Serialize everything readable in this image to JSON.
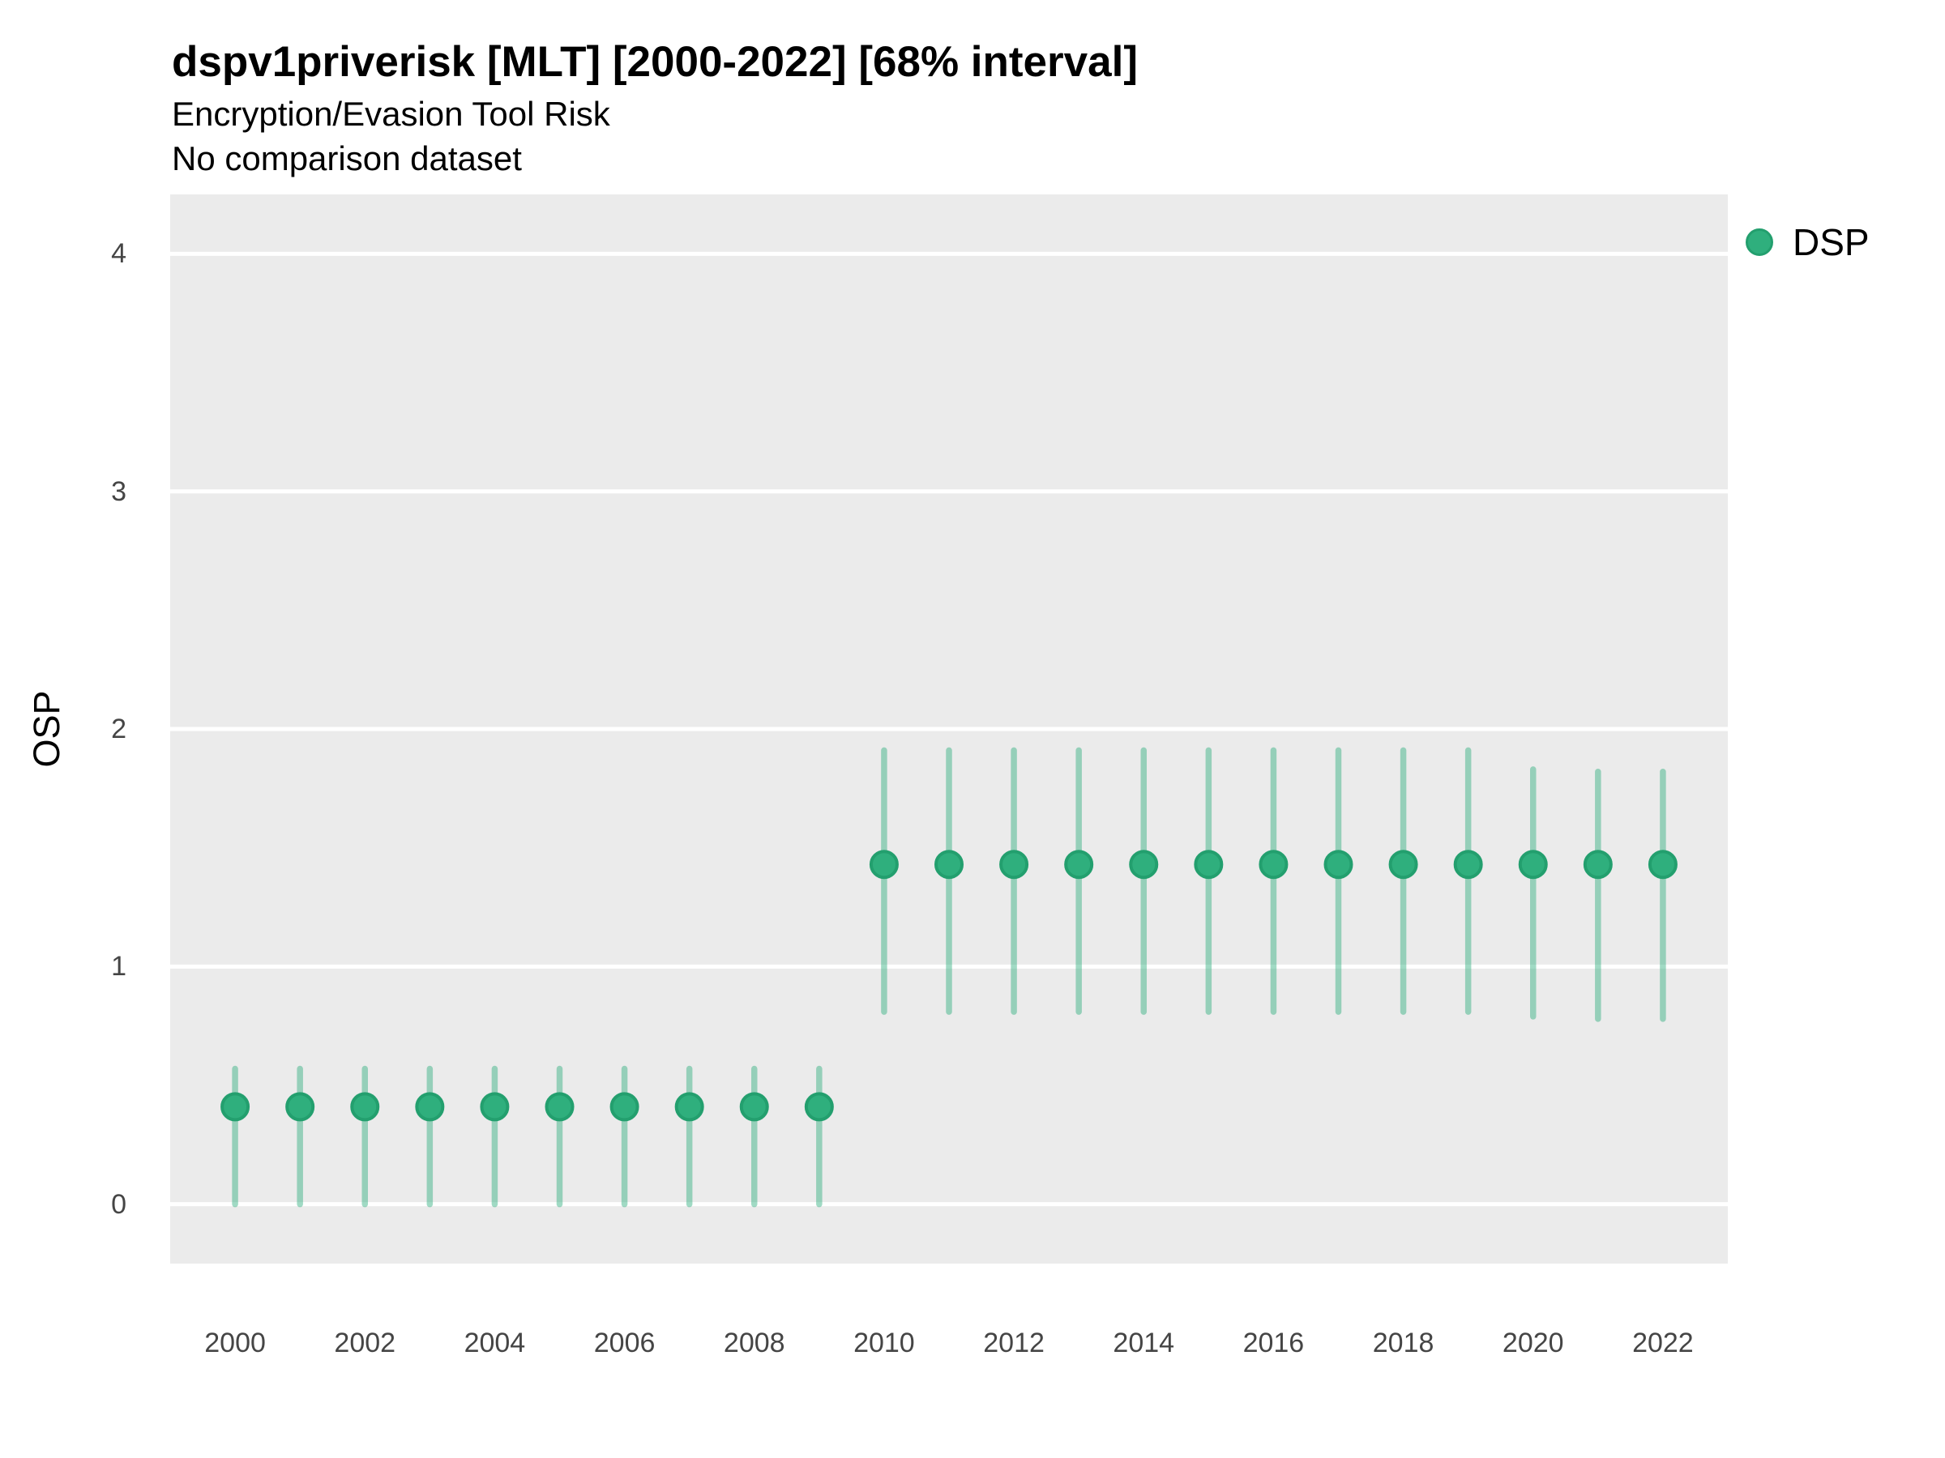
{
  "colors": {
    "panel_background": "#EBEBEB",
    "gridline": "#FFFFFF",
    "point_fill": "#2FAF7D",
    "point_stroke": "#239F6E",
    "interval_line_rgb": "45,174,125",
    "interval_opacity": 0.45,
    "title_text": "#000000",
    "tick_text": "#454545"
  },
  "legend": {
    "position": "right-top",
    "items": [
      {
        "label": "DSP",
        "swatch": "filled-circle"
      }
    ]
  },
  "chart_data": {
    "type": "scatter",
    "subtype": "pointrange (point estimate with 68% interval bars)",
    "title": "dspv1priverisk [MLT] [2000-2022] [68% interval]",
    "subtitle": "Encryption/Evasion Tool Risk",
    "annotation": "No comparison dataset",
    "xlabel": "",
    "ylabel": "OSP",
    "xlim": [
      1999,
      2023
    ],
    "ylim": [
      -0.25,
      4.25
    ],
    "xticks": [
      2000,
      2002,
      2004,
      2006,
      2008,
      2010,
      2012,
      2014,
      2016,
      2018,
      2020,
      2022
    ],
    "yticks": [
      0,
      1,
      2,
      3,
      4
    ],
    "grid": "horizontal major gridlines only, white on gray panel",
    "legend_position": "right near top",
    "interval_level": "68%",
    "series": [
      {
        "name": "DSP",
        "points": [
          {
            "x": 2000,
            "y": 0.41,
            "lo": 0.0,
            "hi": 0.57
          },
          {
            "x": 2001,
            "y": 0.41,
            "lo": 0.0,
            "hi": 0.57
          },
          {
            "x": 2002,
            "y": 0.41,
            "lo": 0.0,
            "hi": 0.57
          },
          {
            "x": 2003,
            "y": 0.41,
            "lo": 0.0,
            "hi": 0.57
          },
          {
            "x": 2004,
            "y": 0.41,
            "lo": 0.0,
            "hi": 0.57
          },
          {
            "x": 2005,
            "y": 0.41,
            "lo": 0.0,
            "hi": 0.57
          },
          {
            "x": 2006,
            "y": 0.41,
            "lo": 0.0,
            "hi": 0.57
          },
          {
            "x": 2007,
            "y": 0.41,
            "lo": 0.0,
            "hi": 0.57
          },
          {
            "x": 2008,
            "y": 0.41,
            "lo": 0.0,
            "hi": 0.57
          },
          {
            "x": 2009,
            "y": 0.41,
            "lo": 0.0,
            "hi": 0.57
          },
          {
            "x": 2010,
            "y": 1.43,
            "lo": 0.81,
            "hi": 1.91
          },
          {
            "x": 2011,
            "y": 1.43,
            "lo": 0.81,
            "hi": 1.91
          },
          {
            "x": 2012,
            "y": 1.43,
            "lo": 0.81,
            "hi": 1.91
          },
          {
            "x": 2013,
            "y": 1.43,
            "lo": 0.81,
            "hi": 1.91
          },
          {
            "x": 2014,
            "y": 1.43,
            "lo": 0.81,
            "hi": 1.91
          },
          {
            "x": 2015,
            "y": 1.43,
            "lo": 0.81,
            "hi": 1.91
          },
          {
            "x": 2016,
            "y": 1.43,
            "lo": 0.81,
            "hi": 1.91
          },
          {
            "x": 2017,
            "y": 1.43,
            "lo": 0.81,
            "hi": 1.91
          },
          {
            "x": 2018,
            "y": 1.43,
            "lo": 0.81,
            "hi": 1.91
          },
          {
            "x": 2019,
            "y": 1.43,
            "lo": 0.81,
            "hi": 1.91
          },
          {
            "x": 2020,
            "y": 1.43,
            "lo": 0.79,
            "hi": 1.83
          },
          {
            "x": 2021,
            "y": 1.43,
            "lo": 0.78,
            "hi": 1.82
          },
          {
            "x": 2022,
            "y": 1.43,
            "lo": 0.78,
            "hi": 1.82
          }
        ]
      }
    ]
  }
}
